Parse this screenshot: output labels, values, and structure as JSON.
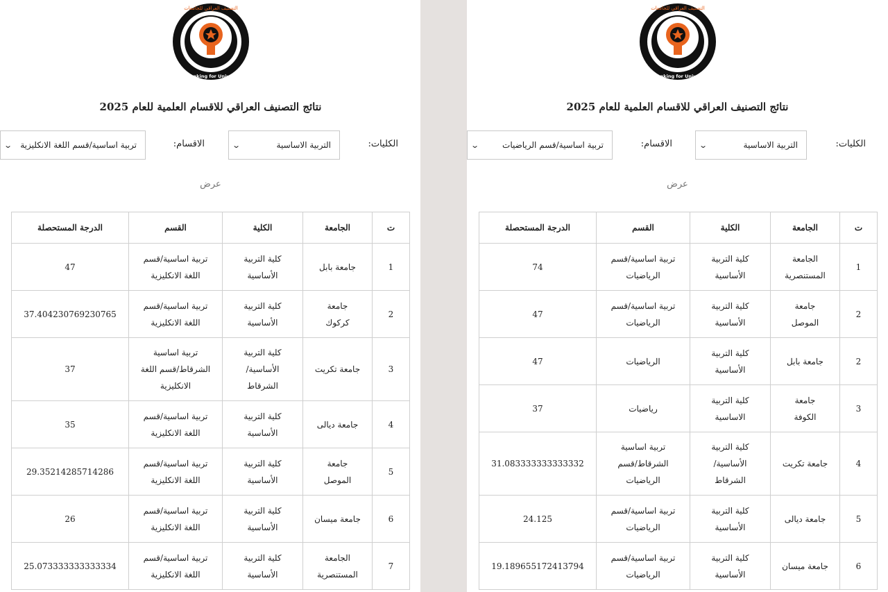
{
  "panels": [
    {
      "logo": {
        "text_ar": "التصنيف العراقي للجامعات",
        "text_en": "Iraqi Ranking for Universities",
        "colors": {
          "ring": "#111111",
          "accent": "#e8641e"
        }
      },
      "title": "نتائج التصنيف العراقي للاقسام العلمية للعام 2025",
      "colleges_label": "الكليات:",
      "colleges_value": "التربية الاساسية",
      "sections_label": "الاقسام:",
      "sections_value": "تربية اساسية/قسم اللغة الانكليزية",
      "show_label": "عرض",
      "headers": [
        "ت",
        "الجامعة",
        "الكلية",
        "القسم",
        "الدرجة المستحصلة"
      ],
      "rows": [
        [
          "1",
          "جامعة بابل",
          "كلية التربية\nالأساسية",
          "تربية اساسية/قسم\nاللغة الانكليزية",
          "47"
        ],
        [
          "2",
          "جامعة\nكركوك",
          "كلية التربية\nالأساسية",
          "تربية اساسية/قسم\nاللغة الانكليزية",
          "37.404230769230765"
        ],
        [
          "3",
          "جامعة تكريت",
          "كلية التربية\nالأساسية/\nالشرقاط",
          "تربية اساسية\nالشرقاط/قسم اللغة\nالانكليزية",
          "37"
        ],
        [
          "4",
          "جامعة ديالى",
          "كلية التربية\nالأساسية",
          "تربية اساسية/قسم\nاللغة الانكليزية",
          "35"
        ],
        [
          "5",
          "جامعة\nالموصل",
          "كلية التربية\nالأساسية",
          "تربية اساسية/قسم\nاللغة الانكليزية",
          "29.35214285714286"
        ],
        [
          "6",
          "جامعة ميسان",
          "كلية التربية\nالأساسية",
          "تربية اساسية/قسم\nاللغة الانكليزية",
          "26"
        ],
        [
          "7",
          "الجامعة\nالمستنصرية",
          "كلية التربية\nالأساسية",
          "تربية اساسية/قسم\nاللغة الانكليزية",
          "25.073333333333334"
        ]
      ]
    },
    {
      "logo": {
        "text_ar": "التصنيف العراقي للجامعات",
        "text_en": "Iraqi Ranking for Universities",
        "colors": {
          "ring": "#111111",
          "accent": "#e8641e"
        }
      },
      "title": "نتائج التصنيف العراقي للاقسام العلمية للعام 2025",
      "colleges_label": "الكليات:",
      "colleges_value": "التربية الاساسية",
      "sections_label": "الاقسام:",
      "sections_value": "تربية اساسية/قسم الرياضيات",
      "show_label": "عرض",
      "headers": [
        "ت",
        "الجامعة",
        "الكلية",
        "القسم",
        "الدرجة المستحصلة"
      ],
      "rows": [
        [
          "1",
          "الجامعة\nالمستنصرية",
          "كلية التربية\nالأساسية",
          "تربية اساسية/قسم\nالرياضيات",
          "74"
        ],
        [
          "2",
          "جامعة\nالموصل",
          "كلية التربية\nالأساسية",
          "تربية اساسية/قسم\nالرياضيات",
          "47"
        ],
        [
          "2",
          "جامعة بابل",
          "كلية التربية\nالأساسية",
          "الرياضيات",
          "47"
        ],
        [
          "3",
          "جامعة\nالكوفة",
          "كلية التربية\nالاساسية",
          "رياضيات",
          "37"
        ],
        [
          "4",
          "جامعة تكريت",
          "كلية التربية\nالأساسية/\nالشرقاط",
          "تربية اساسية\nالشرقاط/قسم\nالرياضيات",
          "31.083333333333332"
        ],
        [
          "5",
          "جامعة ديالى",
          "كلية التربية\nالأساسية",
          "تربية اساسية/قسم\nالرياضيات",
          "24.125"
        ],
        [
          "6",
          "جامعة ميسان",
          "كلية التربية\nالأساسية",
          "تربية اساسية/قسم\nالرياضيات",
          "19.189655172413794"
        ]
      ]
    }
  ]
}
